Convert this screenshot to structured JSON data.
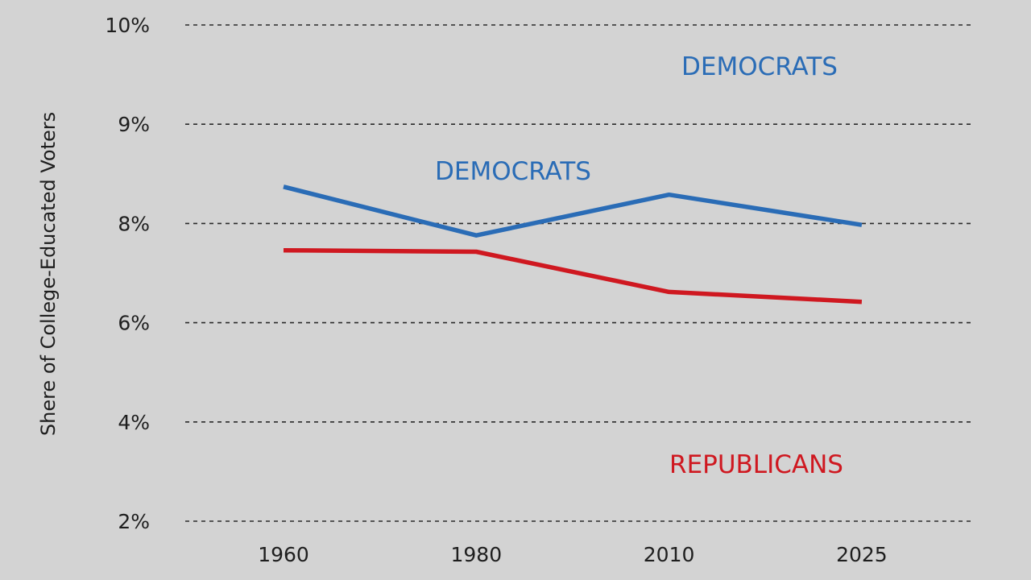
{
  "chart_data": {
    "type": "line",
    "title": "",
    "xlabel": "",
    "ylabel": "Shere of College-Educated Voters",
    "categories": [
      "1960",
      "1980",
      "2010",
      "2025"
    ],
    "y_ticks": [
      {
        "label": "10%",
        "value": 10
      },
      {
        "label": "9%",
        "value": 9
      },
      {
        "label": "8%",
        "value": 8
      },
      {
        "label": "6%",
        "value": 6
      },
      {
        "label": "4%",
        "value": 4
      },
      {
        "label": "2%",
        "value": 2
      }
    ],
    "grid": true,
    "grid_style": "dashed",
    "series": [
      {
        "name": "DEMOCRATS",
        "color": "#2a6cb6",
        "values": [
          8.37,
          7.76,
          8.29,
          7.97
        ]
      },
      {
        "name": "REPUBLICANS",
        "color": "#cf1820",
        "values": [
          7.46,
          7.43,
          6.62,
          6.42
        ]
      }
    ],
    "annotations": [
      {
        "text": "DEMOCRATS",
        "color": "#2a6cb6"
      },
      {
        "text": "DEMOCRATS",
        "color": "#2a6cb6"
      },
      {
        "text": "REPUBLICANS",
        "color": "#cf1820"
      }
    ]
  }
}
